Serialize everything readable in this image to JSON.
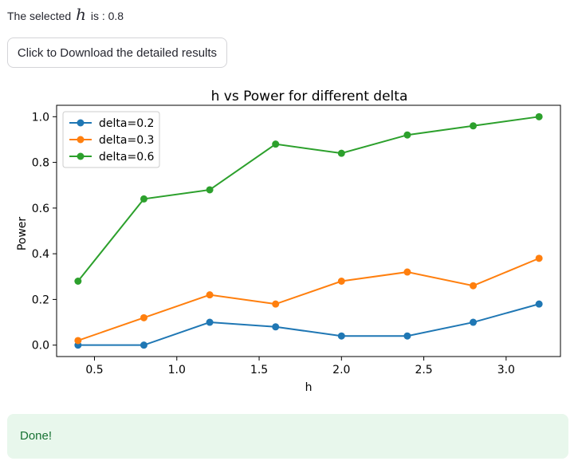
{
  "selection": {
    "prefix": "The selected",
    "variable": "h",
    "suffix": "is : 0.8"
  },
  "download_button": {
    "label": "Click to Download the detailed results"
  },
  "chart_data": {
    "type": "line",
    "title": "h vs Power for different delta",
    "xlabel": "h",
    "ylabel": "Power",
    "x": [
      0.4,
      0.8,
      1.2,
      1.6,
      2.0,
      2.4,
      2.8,
      3.2
    ],
    "xlim": [
      0.27,
      3.33
    ],
    "ylim": [
      -0.05,
      1.05
    ],
    "xticks": [
      0.5,
      1.0,
      1.5,
      2.0,
      2.5,
      3.0
    ],
    "xtick_labels": [
      "0.5",
      "1.0",
      "1.5",
      "2.0",
      "2.5",
      "3.0"
    ],
    "yticks": [
      0.0,
      0.2,
      0.4,
      0.6,
      0.8,
      1.0
    ],
    "ytick_labels": [
      "0.0",
      "0.2",
      "0.4",
      "0.6",
      "0.8",
      "1.0"
    ],
    "grid": false,
    "legend_position": "top-left",
    "series": [
      {
        "name": "delta=0.2",
        "color": "#1f77b4",
        "values": [
          0.0,
          0.0,
          0.1,
          0.08,
          0.04,
          0.04,
          0.1,
          0.18
        ]
      },
      {
        "name": "delta=0.3",
        "color": "#ff7f0e",
        "values": [
          0.02,
          0.12,
          0.22,
          0.18,
          0.28,
          0.32,
          0.26,
          0.38
        ]
      },
      {
        "name": "delta=0.6",
        "color": "#2ca02c",
        "values": [
          0.28,
          0.64,
          0.68,
          0.88,
          0.84,
          0.92,
          0.96,
          1.0
        ]
      }
    ]
  },
  "status": {
    "message": "Done!",
    "color": "#177233",
    "background": "#e8f7ec"
  }
}
